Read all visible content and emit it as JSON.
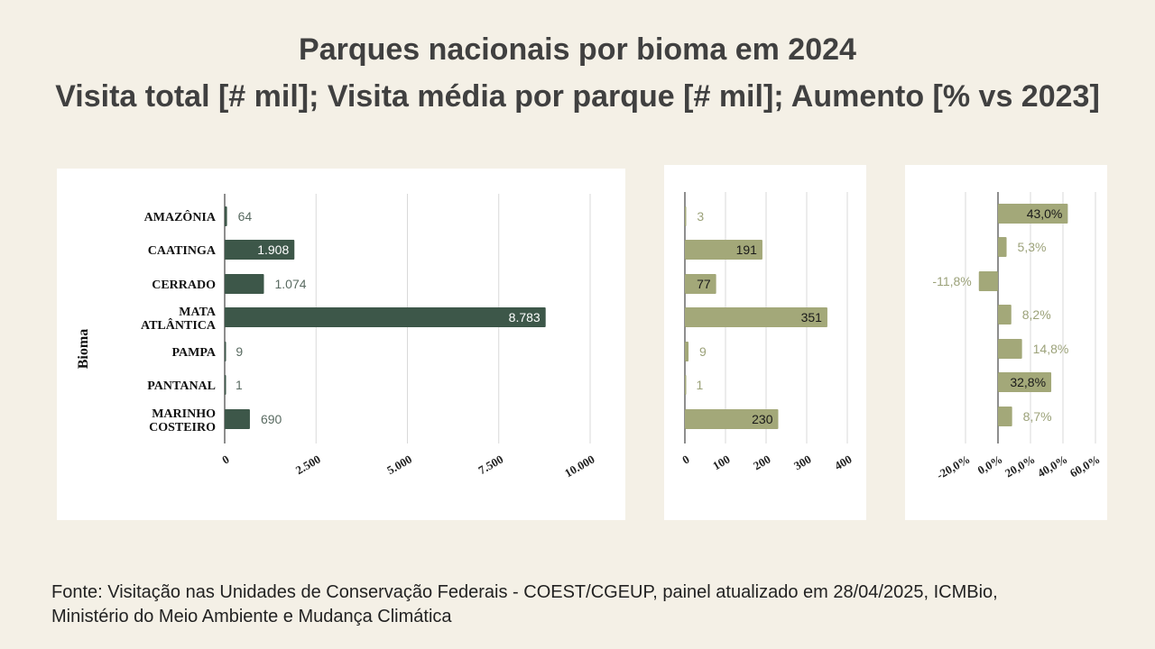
{
  "title": {
    "line1": "Parques nacionais por bioma em 2024",
    "line2": "Visita total [# mil]; Visita média por parque [# mil]; Aumento [% vs 2023]"
  },
  "footer": {
    "line1": "Fonte: Visitação nas Unidades de Conservação Federais - COEST/CGEUP, painel atualizado em 28/04/2025, ICMBio,",
    "line2": "Ministério do Meio Ambiente e Mudança Climática"
  },
  "colors": {
    "background": "#f4f0e6",
    "dark_bar": "#3d5749",
    "olive_bar": "#a3a879",
    "olive_text": "#9ca27a"
  },
  "chart_data": [
    {
      "type": "bar",
      "orientation": "horizontal",
      "title": "Visita total [# mil]",
      "ylabel": "Bioma",
      "categories": [
        [
          "AMAZÔNIA"
        ],
        [
          "CAATINGA"
        ],
        [
          "CERRADO"
        ],
        [
          "MATA",
          "ATLÂNTICA"
        ],
        [
          "PAMPA"
        ],
        [
          "PANTANAL"
        ],
        [
          "MARINHO",
          "COSTEIRO"
        ]
      ],
      "values": [
        64,
        1908,
        1074,
        8783,
        9,
        1,
        690
      ],
      "labels": [
        "64",
        "1.908",
        "1.074",
        "8.783",
        "9",
        "1",
        "690"
      ],
      "xlim": [
        0,
        10000
      ],
      "ticks": [
        0,
        2500,
        5000,
        7500,
        10000
      ],
      "tick_labels": [
        "0",
        "2.500",
        "5.000",
        "7.500",
        "10.000"
      ]
    },
    {
      "type": "bar",
      "orientation": "horizontal",
      "title": "Visita média por parque [# mil]",
      "values": [
        3,
        191,
        77,
        351,
        9,
        1,
        230
      ],
      "labels": [
        "3",
        "191",
        "77",
        "351",
        "9",
        "1",
        "230"
      ],
      "xlim": [
        0,
        400
      ],
      "ticks": [
        0,
        100,
        200,
        300,
        400
      ],
      "tick_labels": [
        "0",
        "100",
        "200",
        "300",
        "400"
      ]
    },
    {
      "type": "bar",
      "orientation": "horizontal",
      "title": "Aumento [% vs 2023]",
      "values": [
        43.0,
        5.3,
        -11.8,
        8.2,
        14.8,
        32.8,
        8.7
      ],
      "labels": [
        "43,0%",
        "5,3%",
        "-11,8%",
        "8,2%",
        "14,8%",
        "32,8%",
        "8,7%"
      ],
      "xlim": [
        -20,
        60
      ],
      "ticks": [
        -20,
        0,
        20,
        40,
        60
      ],
      "tick_labels": [
        "-20,0%",
        "0,0%",
        "20,0%",
        "40,0%",
        "60,0%"
      ]
    }
  ]
}
